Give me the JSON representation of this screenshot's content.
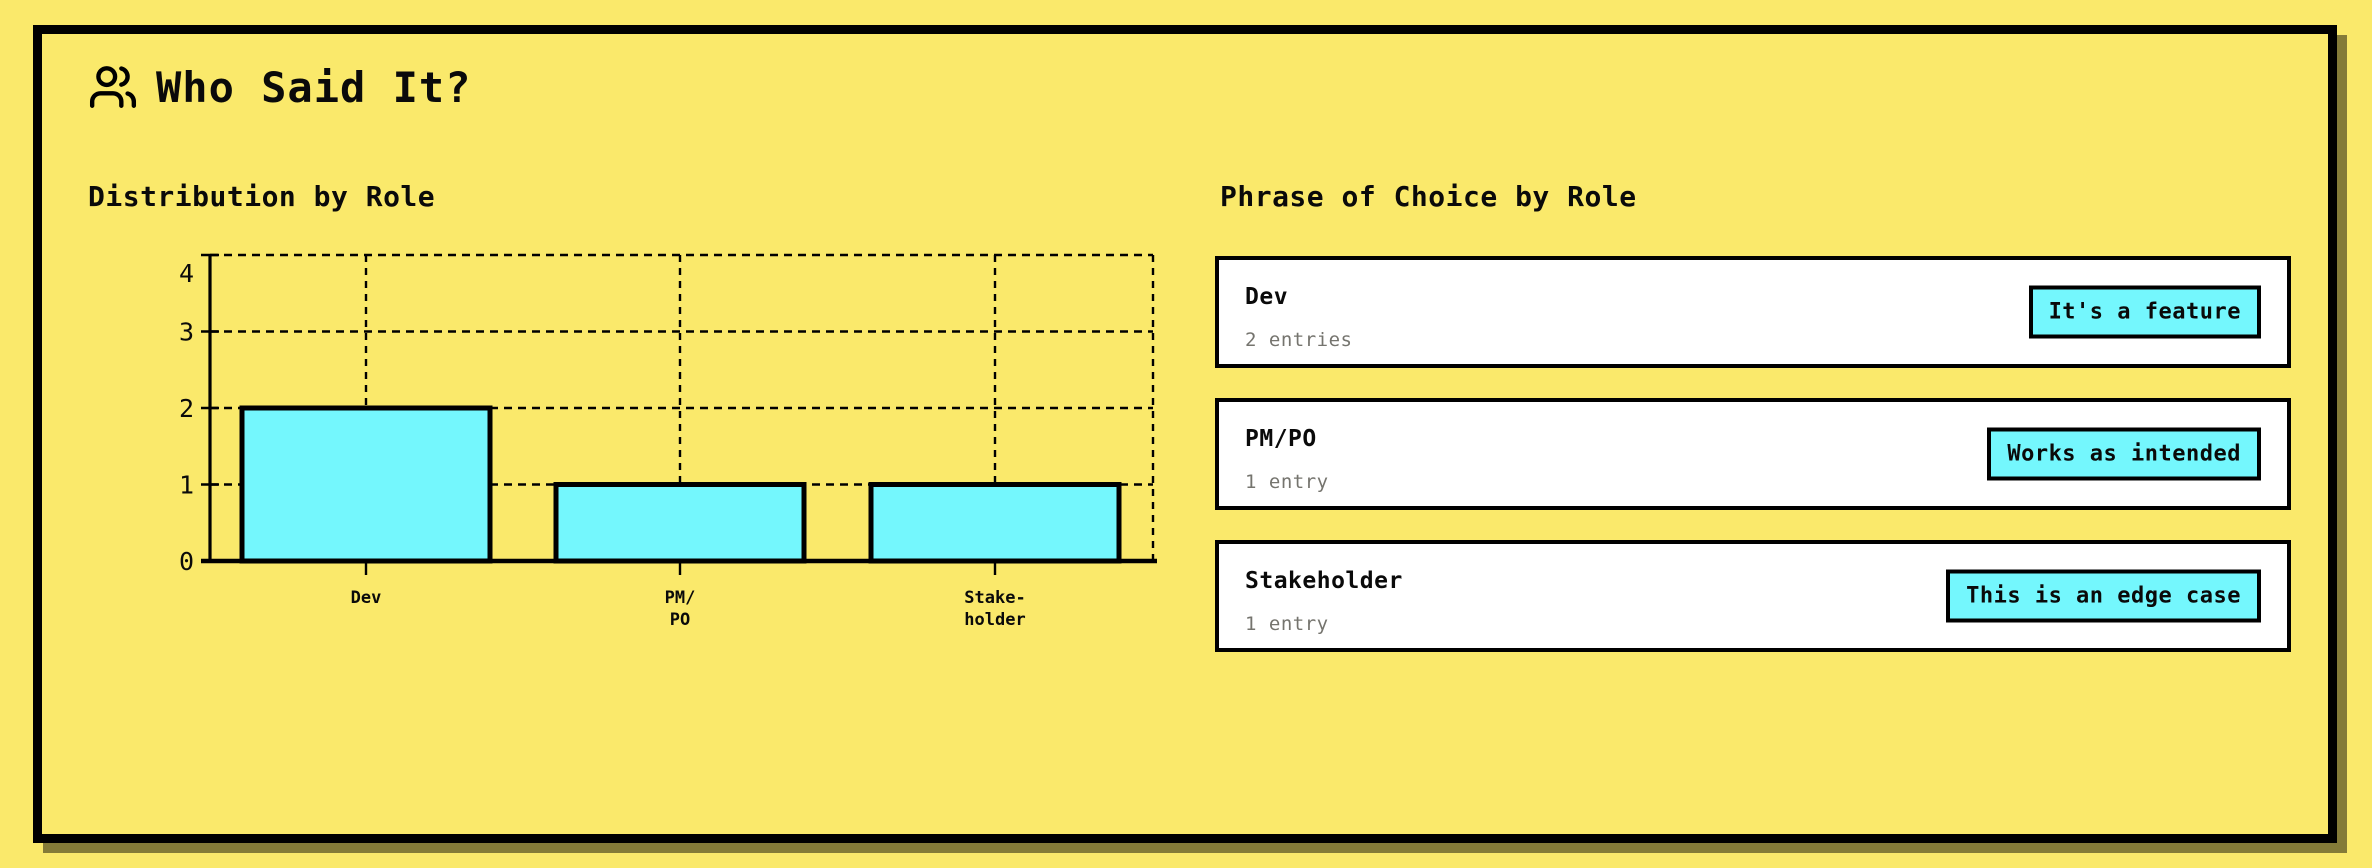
{
  "page": {
    "title": "Who Said It?"
  },
  "colors": {
    "background": "#FAE96B",
    "panel_border": "#000000",
    "panel_shadow_olive": "#847B39",
    "accent_cyan": "#74F7FD",
    "card_background": "#FFFFFF",
    "muted_text": "#75746E",
    "text": "#0A0A0A"
  },
  "icons": {
    "title_icon": "users-icon"
  },
  "sections": {
    "distribution": {
      "heading": "Distribution by Role"
    },
    "phrases": {
      "heading": "Phrase of Choice by Role",
      "cards": [
        {
          "role": "Dev",
          "count": "2 entries",
          "phrase": "It's a feature"
        },
        {
          "role": "PM/PO",
          "count": "1 entry",
          "phrase": "Works as intended"
        },
        {
          "role": "Stakeholder",
          "count": "1 entry",
          "phrase": "This is an edge case"
        }
      ]
    }
  },
  "chart_data": {
    "type": "bar",
    "title": "Distribution by Role",
    "categories": [
      "Dev",
      "PM/PO",
      "Stakeholder"
    ],
    "category_tick_lines": [
      [
        "Dev"
      ],
      [
        "PM/",
        "PO"
      ],
      [
        "Stake-",
        "holder"
      ]
    ],
    "values": [
      2,
      1,
      1
    ],
    "xlabel": "",
    "ylabel": "",
    "ylim": [
      0,
      4
    ],
    "yticks": [
      0,
      1,
      2,
      3,
      4
    ],
    "grid": "dashed",
    "legend": "none",
    "bar_fill": "#74F7FD",
    "bar_stroke": "#000000"
  }
}
